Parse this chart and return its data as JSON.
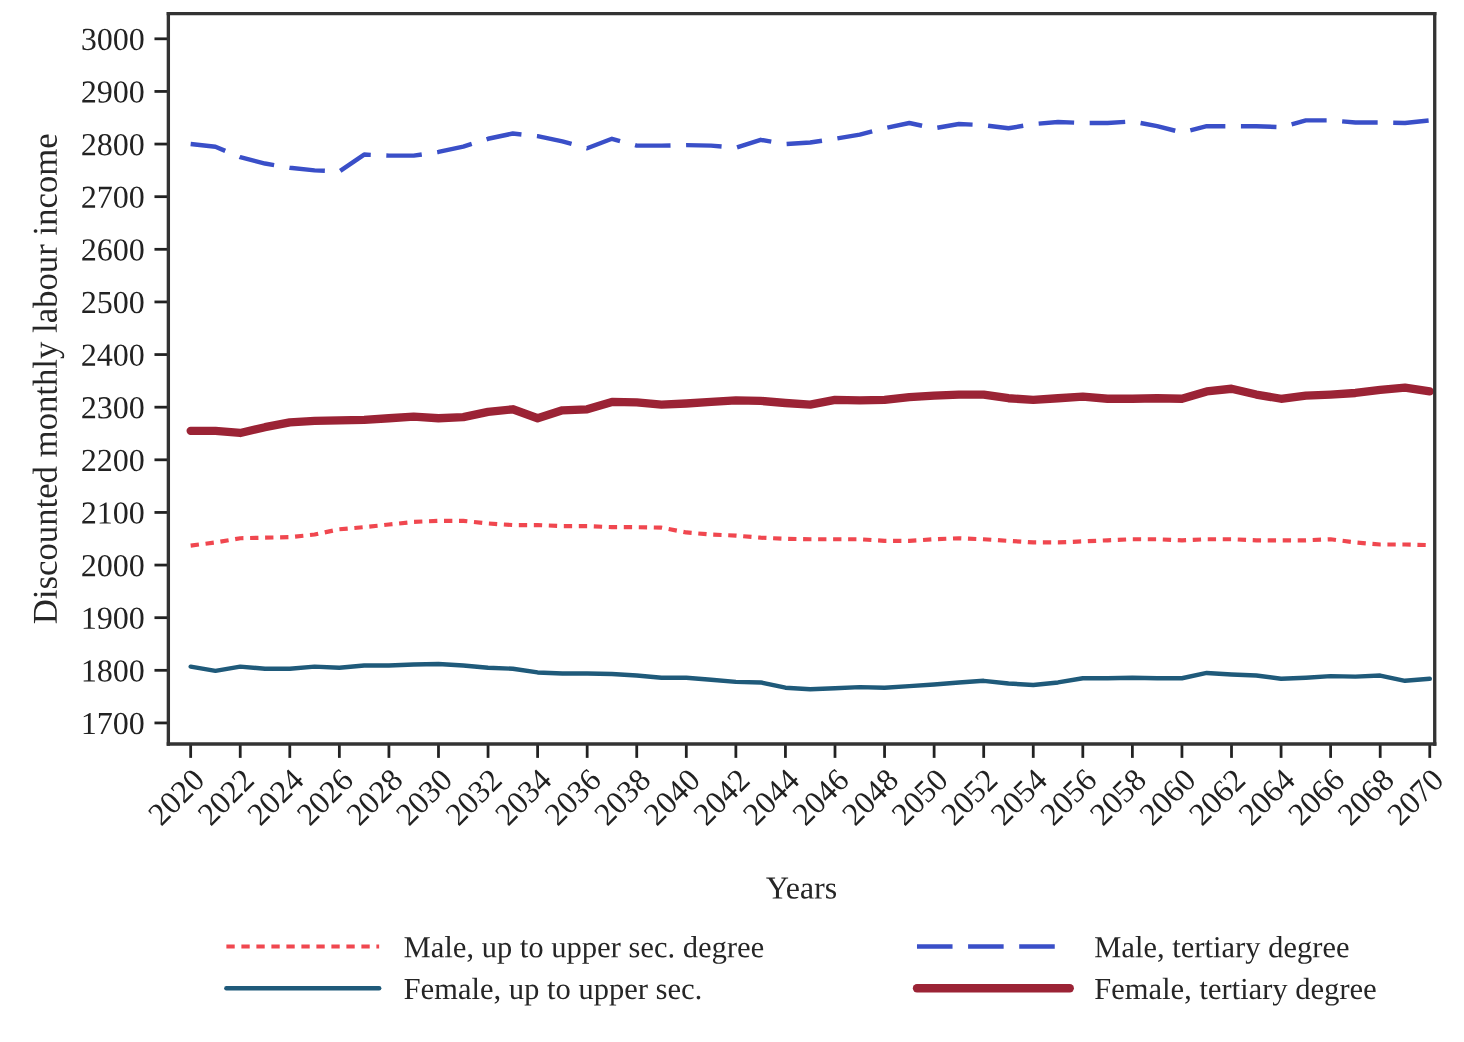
{
  "chart_data": {
    "type": "line",
    "xlabel": "Years",
    "ylabel": "Discounted monthly labour income",
    "x": [
      2020,
      2021,
      2022,
      2023,
      2024,
      2025,
      2026,
      2027,
      2028,
      2029,
      2030,
      2031,
      2032,
      2033,
      2034,
      2035,
      2036,
      2037,
      2038,
      2039,
      2040,
      2041,
      2042,
      2043,
      2044,
      2045,
      2046,
      2047,
      2048,
      2049,
      2050,
      2051,
      2052,
      2053,
      2054,
      2055,
      2056,
      2057,
      2058,
      2059,
      2060,
      2061,
      2062,
      2063,
      2064,
      2065,
      2066,
      2067,
      2068,
      2069,
      2070
    ],
    "series": [
      {
        "name": "Male, up to upper sec. degree",
        "color": "#f0474f",
        "line_style": "dotted",
        "values": [
          2037,
          2043,
          2051,
          2052,
          2053,
          2058,
          2068,
          2072,
          2077,
          2082,
          2084,
          2084,
          2079,
          2076,
          2076,
          2074,
          2074,
          2072,
          2072,
          2071,
          2062,
          2058,
          2056,
          2052,
          2050,
          2049,
          2049,
          2049,
          2046,
          2046,
          2049,
          2051,
          2049,
          2046,
          2043,
          2043,
          2045,
          2047,
          2049,
          2049,
          2047,
          2049,
          2049,
          2047,
          2047,
          2047,
          2049,
          2043,
          2039,
          2039,
          2038
        ]
      },
      {
        "name": "Male, tertiary degree",
        "color": "#3a4fc8",
        "line_style": "dashed",
        "values": [
          2800,
          2795,
          2775,
          2763,
          2755,
          2750,
          2748,
          2780,
          2778,
          2778,
          2785,
          2795,
          2810,
          2820,
          2815,
          2805,
          2792,
          2810,
          2797,
          2797,
          2798,
          2797,
          2793,
          2808,
          2800,
          2803,
          2810,
          2818,
          2830,
          2840,
          2830,
          2838,
          2836,
          2830,
          2838,
          2842,
          2840,
          2840,
          2843,
          2834,
          2822,
          2834,
          2834,
          2834,
          2832,
          2845,
          2845,
          2841,
          2841,
          2840,
          2845
        ]
      },
      {
        "name": "Female, up to upper sec.",
        "color": "#1f5a7a",
        "line_style": "solid",
        "values": [
          1807,
          1799,
          1807,
          1803,
          1803,
          1807,
          1805,
          1809,
          1809,
          1811,
          1812,
          1809,
          1805,
          1803,
          1796,
          1794,
          1794,
          1793,
          1790,
          1786,
          1786,
          1782,
          1778,
          1777,
          1767,
          1764,
          1766,
          1768,
          1767,
          1770,
          1773,
          1777,
          1780,
          1775,
          1772,
          1777,
          1785,
          1785,
          1786,
          1785,
          1785,
          1795,
          1792,
          1790,
          1784,
          1786,
          1789,
          1788,
          1790,
          1780,
          1784
        ]
      },
      {
        "name": "Female, tertiary degree",
        "color": "#9b2335",
        "line_style": "solid",
        "values": [
          2255,
          2255,
          2251,
          2262,
          2271,
          2274,
          2275,
          2276,
          2279,
          2282,
          2279,
          2281,
          2291,
          2296,
          2279,
          2294,
          2296,
          2310,
          2309,
          2305,
          2307,
          2310,
          2313,
          2312,
          2308,
          2305,
          2314,
          2313,
          2314,
          2319,
          2322,
          2324,
          2324,
          2317,
          2314,
          2317,
          2320,
          2316,
          2316,
          2317,
          2316,
          2330,
          2335,
          2324,
          2316,
          2322,
          2324,
          2327,
          2333,
          2337,
          2330
        ]
      }
    ],
    "xlim": [
      2019.1,
      2070.2
    ],
    "ylim": [
      1660,
      3048
    ],
    "xticks": [
      2020,
      2022,
      2024,
      2026,
      2028,
      2030,
      2032,
      2034,
      2036,
      2038,
      2040,
      2042,
      2044,
      2046,
      2048,
      2050,
      2052,
      2054,
      2056,
      2058,
      2060,
      2062,
      2064,
      2066,
      2068,
      2070
    ],
    "yticks": [
      1700,
      1800,
      1900,
      2000,
      2100,
      2200,
      2300,
      2400,
      2500,
      2600,
      2700,
      2800,
      2900,
      3000
    ],
    "grid": false,
    "legend": "bottom"
  }
}
